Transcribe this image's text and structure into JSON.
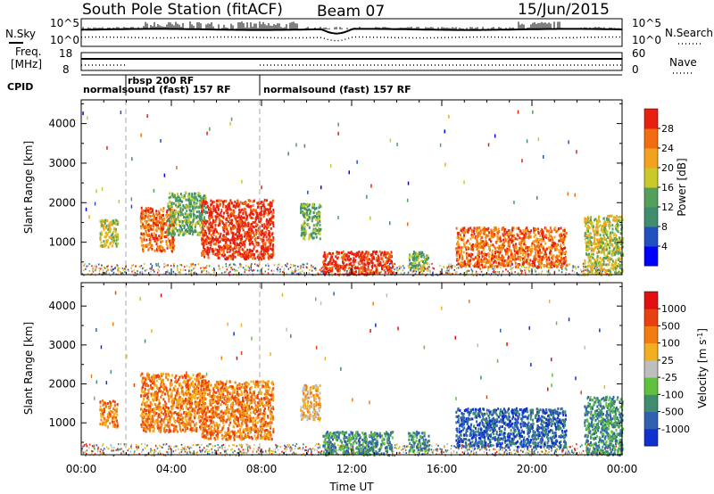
{
  "header": {
    "title": "South Pole Station (fitACF)",
    "beam": "Beam 07",
    "date": "15/Jun/2015"
  },
  "summary": {
    "nsky_label": "N.Sky",
    "nsearch_label": "N.Search",
    "freq_label_1": "Freq.",
    "freq_label_2": "[MHz]",
    "nave_label": "Nave",
    "cpid_label": "CPID",
    "noise_ticks_left": [
      "10^5",
      "10^0"
    ],
    "noise_ticks_right": [
      "10^5",
      "10^0"
    ],
    "freq_ticks": [
      "18",
      "8"
    ],
    "nave_ticks": [
      "60",
      "0"
    ],
    "cpid_segments": [
      {
        "start_h": 0.0,
        "label": "normalsound (fast) 157 RF"
      },
      {
        "start_h": 2.6,
        "label": "rbsp 200 RF"
      },
      {
        "start_h": 8.0,
        "label": "normalsound (fast) 157 RF"
      }
    ]
  },
  "chart_data": [
    {
      "type": "heatmap",
      "name": "Power",
      "ylabel": "Slant Range [km]",
      "xlabel": "",
      "xlim": [
        0,
        24
      ],
      "ylim": [
        180,
        4600
      ],
      "yticks": [
        "1000",
        "2000",
        "3000",
        "4000"
      ],
      "colorbar": {
        "label": "Power [dB]",
        "ticks": [
          "4",
          "8",
          "12",
          "16",
          "20",
          "24",
          "28"
        ],
        "colors": [
          "#0000ff",
          "#2050c0",
          "#3f8c6e",
          "#52a05a",
          "#c9c92a",
          "#f2a21e",
          "#f26d10",
          "#e82010"
        ]
      },
      "echo_regions": [
        {
          "t0": 0.8,
          "t1": 1.6,
          "r0": 900,
          "r1": 1600,
          "level": 4
        },
        {
          "t0": 2.6,
          "t1": 4.1,
          "r0": 800,
          "r1": 1900,
          "level": 6
        },
        {
          "t0": 3.8,
          "t1": 5.5,
          "r0": 1200,
          "r1": 2300,
          "level": 3
        },
        {
          "t0": 5.3,
          "t1": 8.5,
          "r0": 600,
          "r1": 2100,
          "level": 7
        },
        {
          "t0": 9.7,
          "t1": 10.6,
          "r0": 1100,
          "r1": 2000,
          "level": 3
        },
        {
          "t0": 10.7,
          "t1": 13.8,
          "r0": 200,
          "r1": 800,
          "level": 7
        },
        {
          "t0": 14.5,
          "t1": 15.4,
          "r0": 300,
          "r1": 800,
          "level": 3
        },
        {
          "t0": 16.6,
          "t1": 21.5,
          "r0": 400,
          "r1": 1400,
          "level": 6
        },
        {
          "t0": 22.3,
          "t1": 24.0,
          "r0": 200,
          "r1": 1700,
          "level": 4
        }
      ]
    },
    {
      "type": "heatmap",
      "name": "Velocity",
      "ylabel": "Slant Range [km]",
      "xlabel": "Time UT",
      "xlim": [
        0,
        24
      ],
      "ylim": [
        180,
        4600
      ],
      "xticks": [
        "00:00",
        "04:00",
        "08:00",
        "12:00",
        "16:00",
        "20:00",
        "00:00"
      ],
      "yticks": [
        "1000",
        "2000",
        "3000",
        "4000"
      ],
      "colorbar": {
        "label": "Velocity [m s",
        "label_sup": "-1",
        "label_end": "]",
        "ticks": [
          "1000",
          "500",
          "100",
          "25",
          "-25",
          "-100",
          "-500",
          "-1000"
        ],
        "colors": [
          "#1030d0",
          "#3060b0",
          "#3f8c6e",
          "#60c040",
          "#bebebe",
          "#f2b020",
          "#f27c10",
          "#e84010",
          "#e01010"
        ]
      },
      "echo_regions": [
        {
          "t0": 0.8,
          "t1": 1.6,
          "r0": 900,
          "r1": 1600,
          "level": 6
        },
        {
          "t0": 2.6,
          "t1": 5.5,
          "r0": 800,
          "r1": 2300,
          "level": 6
        },
        {
          "t0": 5.3,
          "t1": 8.5,
          "r0": 600,
          "r1": 2100,
          "level": 6
        },
        {
          "t0": 9.7,
          "t1": 10.6,
          "r0": 1100,
          "r1": 2000,
          "level": 5
        },
        {
          "t0": 10.7,
          "t1": 13.8,
          "r0": 200,
          "r1": 800,
          "level": 2
        },
        {
          "t0": 14.5,
          "t1": 15.4,
          "r0": 300,
          "r1": 800,
          "level": 2
        },
        {
          "t0": 16.6,
          "t1": 21.5,
          "r0": 400,
          "r1": 1400,
          "level": 1
        },
        {
          "t0": 22.3,
          "t1": 24.0,
          "r0": 200,
          "r1": 1700,
          "level": 2
        }
      ]
    }
  ]
}
